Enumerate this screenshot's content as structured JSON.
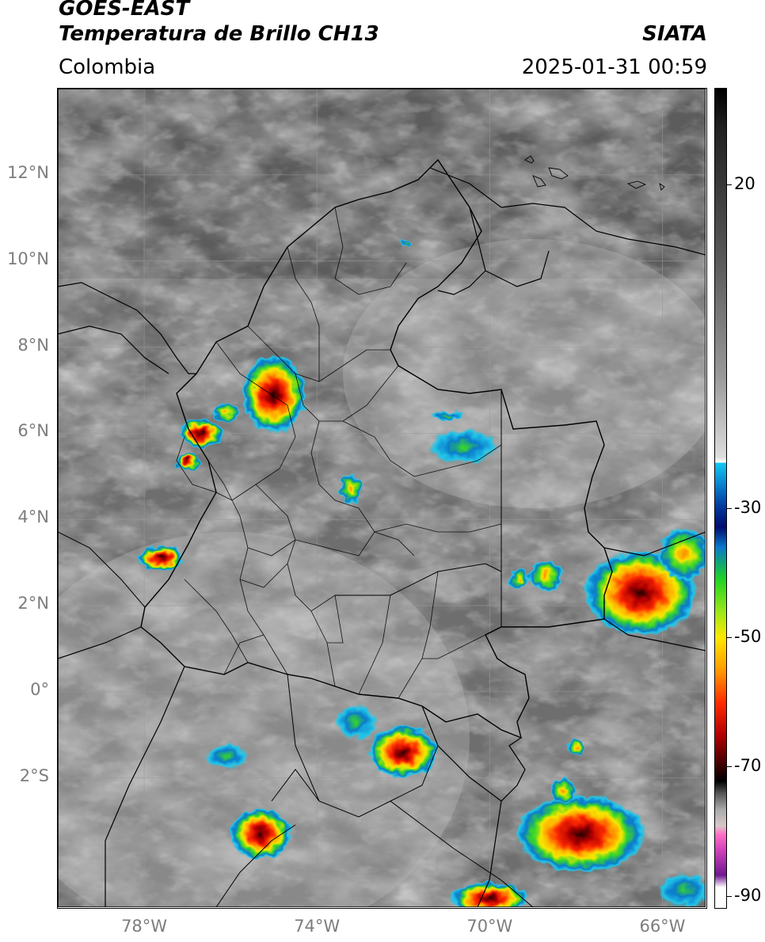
{
  "header": {
    "satellite": "GOES-EAST",
    "product": "Temperatura de Brillo CH13",
    "region": "Colombia",
    "agency": "SIATA",
    "datetime": "2025-01-31 00:59"
  },
  "map": {
    "lon_range": [
      -80,
      -65
    ],
    "lat_range": [
      -5,
      14
    ],
    "x_ticks": [
      {
        "value": -78,
        "label": "78°W"
      },
      {
        "value": -74,
        "label": "74°W"
      },
      {
        "value": -70,
        "label": "70°W"
      },
      {
        "value": -66,
        "label": "66°W"
      }
    ],
    "y_ticks": [
      {
        "value": 12,
        "label": "12°N"
      },
      {
        "value": 10,
        "label": "10°N"
      },
      {
        "value": 8,
        "label": "8°N"
      },
      {
        "value": 6,
        "label": "6°N"
      },
      {
        "value": 4,
        "label": "4°N"
      },
      {
        "value": 2,
        "label": "2°N"
      },
      {
        "value": 0,
        "label": "0°"
      },
      {
        "value": -2,
        "label": "2°S"
      }
    ],
    "gridlines": true,
    "storm_cells": [
      {
        "lon": -75.0,
        "lat": 6.9,
        "rx": 0.75,
        "ry": 0.9,
        "intensity": 0.85
      },
      {
        "lon": -76.7,
        "lat": 6.0,
        "rx": 0.5,
        "ry": 0.35,
        "intensity": 0.8
      },
      {
        "lon": -77.0,
        "lat": 5.35,
        "rx": 0.3,
        "ry": 0.2,
        "intensity": 0.9
      },
      {
        "lon": -76.1,
        "lat": 6.5,
        "rx": 0.3,
        "ry": 0.2,
        "intensity": 0.5
      },
      {
        "lon": -77.6,
        "lat": 3.1,
        "rx": 0.55,
        "ry": 0.3,
        "intensity": 0.85
      },
      {
        "lon": -73.2,
        "lat": 4.7,
        "rx": 0.25,
        "ry": 0.35,
        "intensity": 0.5
      },
      {
        "lon": -70.6,
        "lat": 5.7,
        "rx": 0.8,
        "ry": 0.4,
        "intensity": 0.4
      },
      {
        "lon": -71.0,
        "lat": 6.4,
        "rx": 0.4,
        "ry": 0.12,
        "intensity": 0.3
      },
      {
        "lon": -66.5,
        "lat": 2.3,
        "rx": 1.3,
        "ry": 1.0,
        "intensity": 0.9
      },
      {
        "lon": -65.5,
        "lat": 3.2,
        "rx": 0.6,
        "ry": 0.6,
        "intensity": 0.6
      },
      {
        "lon": -68.7,
        "lat": 2.7,
        "rx": 0.4,
        "ry": 0.35,
        "intensity": 0.6
      },
      {
        "lon": -69.3,
        "lat": 2.6,
        "rx": 0.25,
        "ry": 0.25,
        "intensity": 0.7
      },
      {
        "lon": -72.0,
        "lat": -1.4,
        "rx": 0.8,
        "ry": 0.6,
        "intensity": 0.95
      },
      {
        "lon": -73.1,
        "lat": -0.7,
        "rx": 0.5,
        "ry": 0.4,
        "intensity": 0.4
      },
      {
        "lon": -75.3,
        "lat": -3.3,
        "rx": 0.7,
        "ry": 0.6,
        "intensity": 0.9
      },
      {
        "lon": -76.1,
        "lat": -1.5,
        "rx": 0.5,
        "ry": 0.3,
        "intensity": 0.25
      },
      {
        "lon": -67.9,
        "lat": -3.3,
        "rx": 1.5,
        "ry": 0.9,
        "intensity": 0.9
      },
      {
        "lon": -68.3,
        "lat": -2.3,
        "rx": 0.3,
        "ry": 0.3,
        "intensity": 0.6
      },
      {
        "lon": -68.0,
        "lat": -1.3,
        "rx": 0.2,
        "ry": 0.2,
        "intensity": 0.7
      },
      {
        "lon": -70.0,
        "lat": -4.8,
        "rx": 0.9,
        "ry": 0.4,
        "intensity": 0.9
      },
      {
        "lon": -65.5,
        "lat": -4.6,
        "rx": 0.6,
        "ry": 0.4,
        "intensity": 0.4
      },
      {
        "lon": -71.9,
        "lat": 10.4,
        "rx": 0.1,
        "ry": 0.1,
        "intensity": 0.4
      }
    ]
  },
  "colorbar": {
    "range": [
      -92,
      35
    ],
    "ticks": [
      {
        "value": 20,
        "label": "20"
      },
      {
        "value": -30,
        "label": "-30"
      },
      {
        "value": -50,
        "label": "-50"
      },
      {
        "value": -70,
        "label": "-70"
      },
      {
        "value": -90,
        "label": "-90"
      }
    ]
  }
}
